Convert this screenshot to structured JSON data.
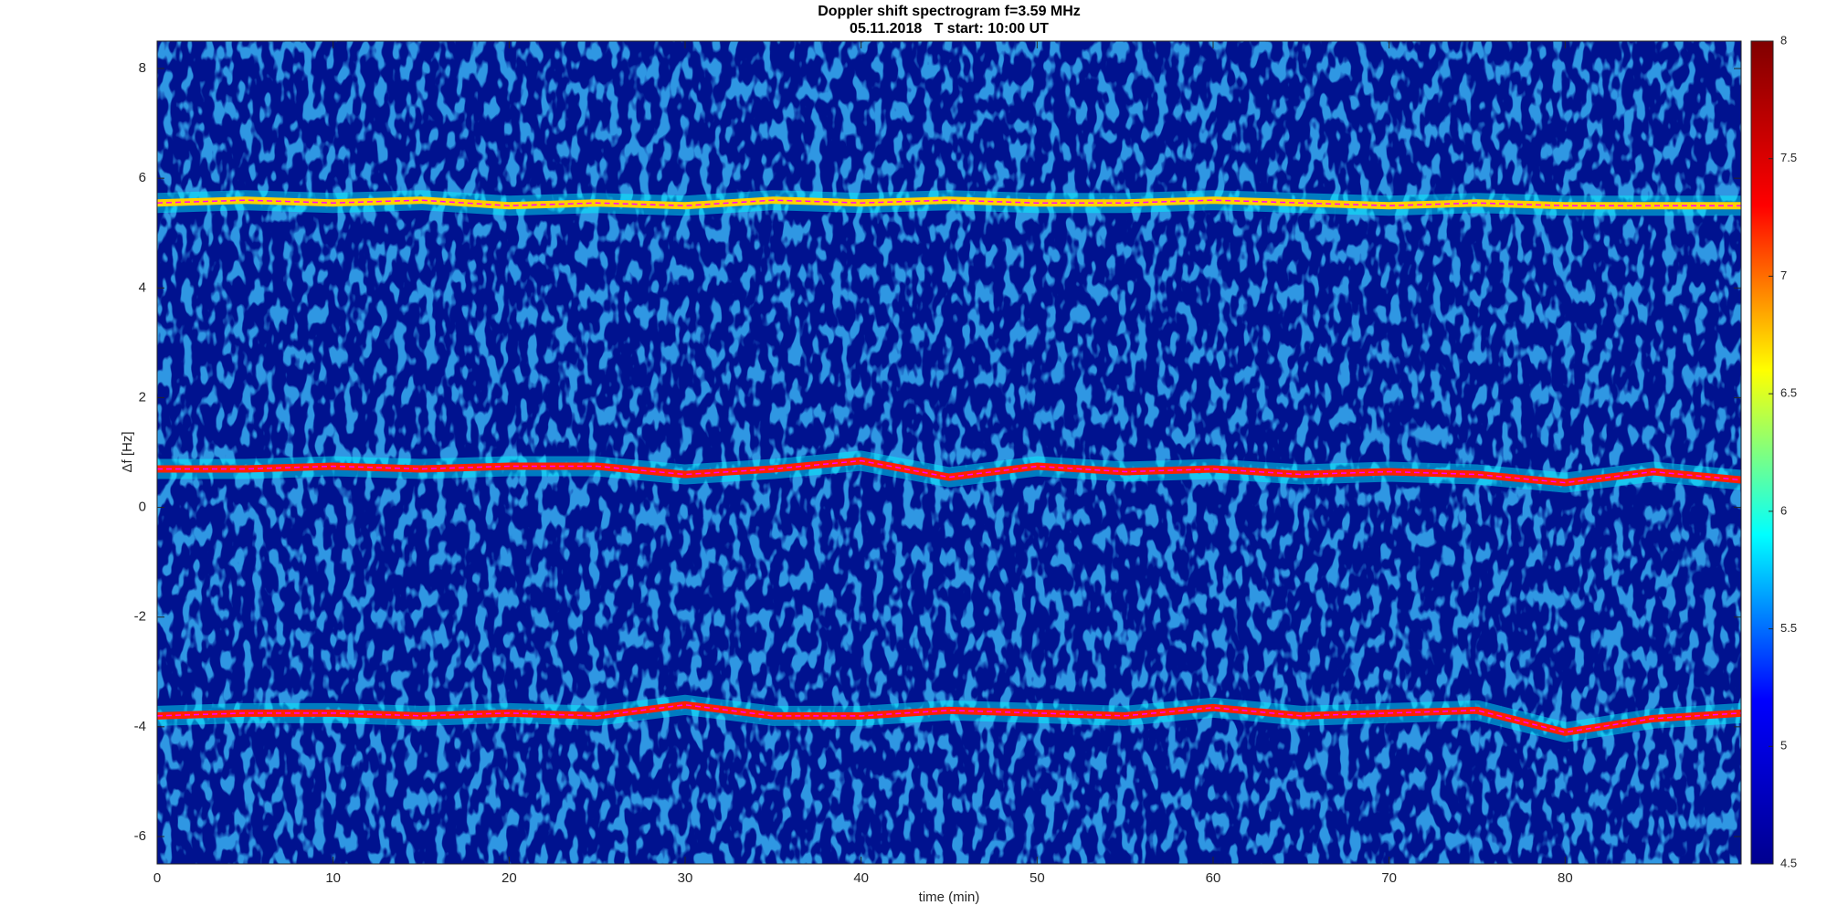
{
  "chart_data": {
    "type": "spectrogram",
    "title": "Doppler shift spectrogram f=3.59 MHz",
    "subtitle": "05.11.2018   T start: 10:00 UT",
    "x_label": "time (min)",
    "y_label": "Δf [Hz]",
    "xlim": [
      0,
      90
    ],
    "xticks": [
      0,
      10,
      20,
      30,
      40,
      50,
      60,
      70,
      80
    ],
    "ylim": [
      -6.5,
      8.5
    ],
    "yticks": [
      -6,
      -4,
      -2,
      0,
      2,
      4,
      6,
      8
    ],
    "clim": [
      4.5,
      8
    ],
    "cticks": [
      4.5,
      5,
      5.5,
      6,
      6.5,
      7,
      7.5,
      8
    ],
    "colormap": [
      "#00008f",
      "#0000ff",
      "#00ffff",
      "#ffff00",
      "#ff0000",
      "#800000"
    ],
    "background_color": "#00128f",
    "trace_color": "#ff00ff",
    "x": [
      0,
      5,
      10,
      15,
      20,
      25,
      30,
      35,
      40,
      45,
      50,
      55,
      60,
      65,
      70,
      75,
      80,
      85,
      90
    ],
    "series": [
      {
        "color": "#ffd000",
        "values": [
          5.55,
          5.6,
          5.55,
          5.6,
          5.5,
          5.55,
          5.5,
          5.6,
          5.55,
          5.6,
          5.55,
          5.55,
          5.6,
          5.55,
          5.5,
          5.55,
          5.5,
          5.5,
          5.5
        ]
      },
      {
        "color": "#ff2000",
        "values": [
          0.7,
          0.7,
          0.75,
          0.7,
          0.75,
          0.75,
          0.6,
          0.7,
          0.85,
          0.55,
          0.75,
          0.65,
          0.7,
          0.6,
          0.65,
          0.6,
          0.45,
          0.65,
          0.5
        ]
      },
      {
        "color": "#ff2000",
        "values": [
          -3.8,
          -3.75,
          -3.75,
          -3.8,
          -3.75,
          -3.8,
          -3.6,
          -3.8,
          -3.8,
          -3.7,
          -3.75,
          -3.8,
          -3.65,
          -3.8,
          -3.75,
          -3.7,
          -4.1,
          -3.85,
          -3.75
        ]
      }
    ]
  }
}
